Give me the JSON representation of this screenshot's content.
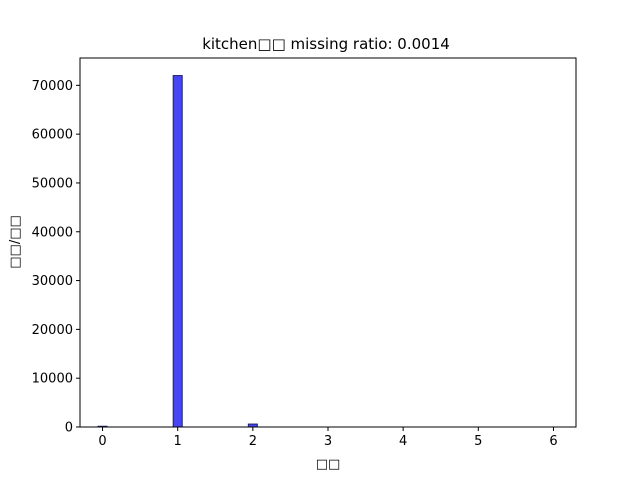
{
  "chart_data": {
    "type": "bar",
    "title": "kitchen□□  missing ratio: 0.0014",
    "xlabel": "□□",
    "ylabel": "□□/□□",
    "xlim": [
      -0.3,
      6.3
    ],
    "ylim": [
      0,
      75600
    ],
    "xticks": [
      "0",
      "1",
      "2",
      "3",
      "4",
      "5",
      "6"
    ],
    "yticks": [
      "0",
      "10000",
      "20000",
      "30000",
      "40000",
      "50000",
      "60000",
      "70000"
    ],
    "bin_width": 0.12,
    "grid": false,
    "bars": [
      {
        "x": 0,
        "value": 150
      },
      {
        "x": 1,
        "value": 72000
      },
      {
        "x": 2,
        "value": 600
      }
    ],
    "colors": {
      "fill": "#4646f5",
      "edge": "#1f1f6e"
    }
  }
}
